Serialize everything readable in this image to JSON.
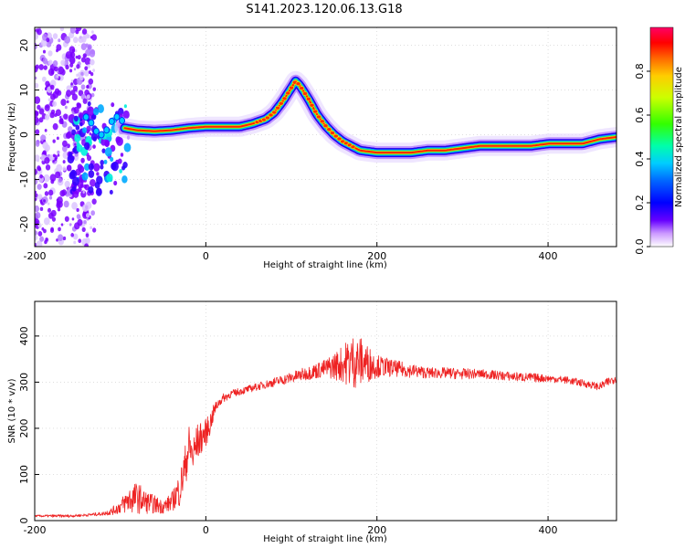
{
  "title": "S141.2023.120.06.13.G18",
  "chart_data": [
    {
      "type": "heatmap",
      "xlabel": "Height of straight line (km)",
      "ylabel": "Frequency (Hz)",
      "xlim": [
        -200,
        480
      ],
      "ylim": [
        -25,
        24
      ],
      "xticks": [
        -200,
        0,
        200,
        400
      ],
      "xtick_labels": [
        "-200",
        "0",
        "200",
        "400"
      ],
      "yticks": [
        -20,
        -10,
        0,
        10,
        20
      ],
      "ytick_labels": [
        "-20",
        "-10",
        "0",
        "10",
        "20"
      ],
      "grid": true,
      "ridge": {
        "x": [
          -95,
          -80,
          -60,
          -40,
          -20,
          0,
          20,
          40,
          55,
          70,
          80,
          90,
          100,
          105,
          110,
          120,
          130,
          140,
          150,
          160,
          170,
          180,
          200,
          220,
          240,
          260,
          280,
          300,
          320,
          340,
          360,
          380,
          400,
          420,
          440,
          460,
          480
        ],
        "y": [
          1.5,
          1,
          0.8,
          1,
          1.5,
          1.8,
          1.8,
          1.8,
          2.5,
          3.5,
          5,
          7.5,
          10.5,
          12,
          11,
          8,
          4.5,
          2,
          0,
          -1.5,
          -2.5,
          -3.5,
          -4,
          -4,
          -4,
          -3.5,
          -3.5,
          -3,
          -2.5,
          -2.5,
          -2.5,
          -2.5,
          -2,
          -2,
          -2,
          -1,
          -0.5
        ]
      },
      "colorbar": {
        "label": "Normalized spectral amplitude",
        "range": [
          0,
          1
        ],
        "ticks": [
          0.0,
          0.2,
          0.4,
          0.6,
          0.8
        ],
        "tick_labels": [
          "0.0",
          "0.2",
          "0.4",
          "0.6",
          "0.8"
        ]
      }
    },
    {
      "type": "line",
      "xlabel": "Height of straight line (km)",
      "ylabel": "SNR (10 * v/v)",
      "xlim": [
        -200,
        480
      ],
      "ylim": [
        0,
        475
      ],
      "xticks": [
        -200,
        0,
        200,
        400
      ],
      "xtick_labels": [
        "-200",
        "0",
        "200",
        "400"
      ],
      "yticks": [
        0,
        100,
        200,
        300,
        400
      ],
      "ytick_labels": [
        "0",
        "100",
        "200",
        "300",
        "400"
      ],
      "grid": true,
      "series": [
        {
          "color": "#ee2222",
          "x": [
            -200,
            -180,
            -160,
            -140,
            -120,
            -110,
            -100,
            -90,
            -80,
            -70,
            -60,
            -50,
            -40,
            -30,
            -25,
            -20,
            -15,
            -10,
            -5,
            0,
            5,
            10,
            15,
            20,
            30,
            40,
            50,
            60,
            80,
            100,
            120,
            140,
            160,
            170,
            180,
            190,
            200,
            220,
            240,
            260,
            280,
            300,
            320,
            340,
            360,
            380,
            400,
            420,
            440,
            460,
            470,
            480
          ],
          "y": [
            10,
            10,
            10,
            12,
            15,
            20,
            30,
            45,
            50,
            40,
            35,
            30,
            40,
            70,
            110,
            160,
            140,
            170,
            180,
            190,
            210,
            240,
            255,
            265,
            275,
            280,
            285,
            290,
            300,
            310,
            320,
            330,
            340,
            345,
            345,
            340,
            335,
            330,
            325,
            320,
            320,
            318,
            318,
            315,
            312,
            310,
            308,
            305,
            298,
            290,
            300,
            310
          ],
          "noise": [
            2,
            3,
            3,
            3,
            4,
            8,
            15,
            30,
            35,
            25,
            20,
            15,
            20,
            40,
            45,
            50,
            45,
            40,
            35,
            30,
            25,
            15,
            10,
            10,
            8,
            8,
            8,
            8,
            10,
            12,
            15,
            20,
            40,
            60,
            55,
            40,
            25,
            18,
            15,
            12,
            12,
            12,
            10,
            10,
            10,
            10,
            8,
            8,
            8,
            8,
            10,
            10
          ]
        }
      ]
    }
  ]
}
